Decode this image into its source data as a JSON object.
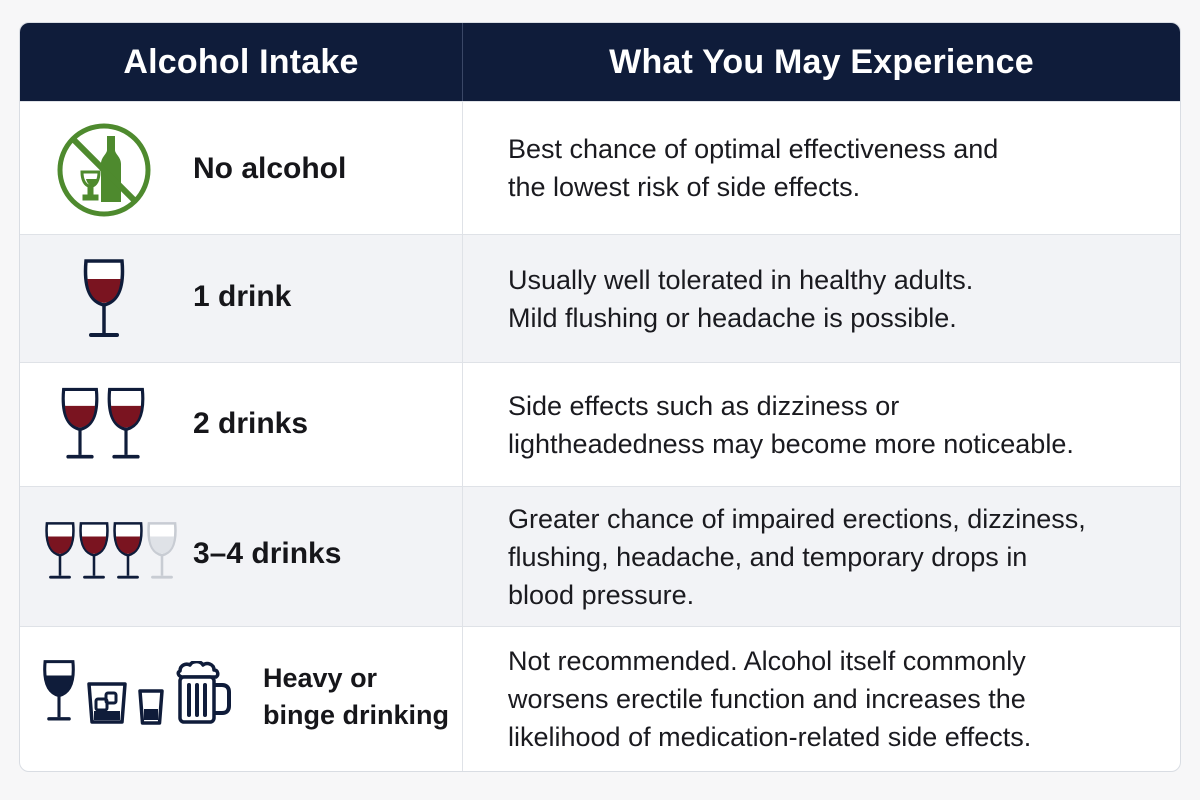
{
  "header": {
    "col_intake": "Alcohol Intake",
    "col_experience": "What You May Experience"
  },
  "rows": [
    {
      "intake": "No alcohol",
      "icon": "no-alcohol-icon",
      "desc": [
        "Best chance of optimal effectiveness and",
        "the lowest risk of side effects."
      ]
    },
    {
      "intake": "1 drink",
      "icon": "wine-glass-icon",
      "desc": [
        "Usually well tolerated in healthy adults.",
        "Mild flushing or headache is possible."
      ]
    },
    {
      "intake": "2 drinks",
      "icon": "wine-glass-icon",
      "desc": [
        "Side effects such as dizziness or",
        "lightheadedness may become more noticeable."
      ]
    },
    {
      "intake": "3–4 drinks",
      "icon": "wine-glass-icon",
      "desc": [
        "Greater chance of impaired erections, dizziness,",
        "flushing, headache, and temporary drops in",
        "blood pressure."
      ]
    },
    {
      "intake": [
        "Heavy or",
        "binge drinking"
      ],
      "icon": "mixed-drinks-icon",
      "desc": [
        "Not recommended. Alcohol itself commonly",
        "worsens erectile function and increases the",
        "likelihood of medication-related side effects."
      ]
    }
  ],
  "colors": {
    "header_bg": "#0f1c3a",
    "wine": "#7a1420",
    "glass_outline": "#0f1c3a",
    "faded_glass": "#c8ccd3",
    "no_alcohol_green": "#4e8a2e",
    "shade_row": "#f2f3f6"
  }
}
